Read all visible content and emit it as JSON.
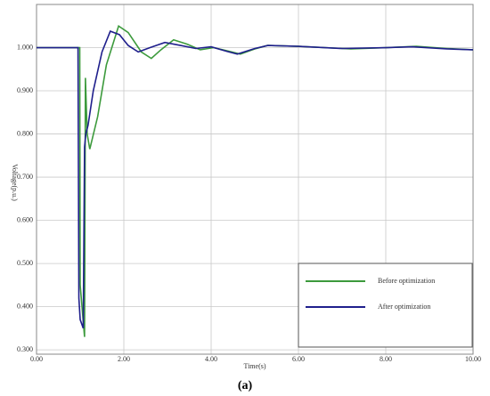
{
  "chart_data": {
    "type": "line",
    "x_label": "Time(s)",
    "y_label": "Voltage(p.u.)",
    "caption": "(a)",
    "xlim": [
      0,
      10
    ],
    "ylim": [
      0.29,
      1.1
    ],
    "xticks": [
      {
        "value": 0,
        "label": "0.00"
      },
      {
        "value": 2,
        "label": "2.00"
      },
      {
        "value": 4,
        "label": "4.00"
      },
      {
        "value": 6,
        "label": "6.00"
      },
      {
        "value": 8,
        "label": "8.00"
      },
      {
        "value": 10,
        "label": "10.00"
      }
    ],
    "yticks": [
      {
        "value": 0.3,
        "label": "0.300"
      },
      {
        "value": 0.4,
        "label": "0.400"
      },
      {
        "value": 0.5,
        "label": "0.500"
      },
      {
        "value": 0.6,
        "label": "0.600"
      },
      {
        "value": 0.7,
        "label": "0.700"
      },
      {
        "value": 0.8,
        "label": "0.800"
      },
      {
        "value": 0.9,
        "label": "0.900"
      },
      {
        "value": 1.0,
        "label": "1.000"
      }
    ],
    "grid": true,
    "legend": "lower right",
    "series": [
      {
        "name": "Before optimization",
        "color": "#3c9a3c",
        "x": [
          0,
          0.99,
          1.0,
          1.1,
          1.12,
          1.16,
          1.22,
          1.4,
          1.6,
          1.88,
          2.1,
          2.4,
          2.63,
          2.85,
          3.14,
          3.45,
          3.75,
          4.06,
          4.35,
          4.67,
          5.0,
          5.29,
          6.0,
          7.2,
          8.0,
          8.7,
          9.4,
          10
        ],
        "values": [
          1.0,
          1.0,
          0.45,
          0.33,
          0.93,
          0.8,
          0.765,
          0.84,
          0.96,
          1.05,
          1.035,
          0.99,
          0.975,
          0.995,
          1.018,
          1.008,
          0.995,
          1.0,
          0.993,
          0.985,
          0.997,
          1.005,
          1.003,
          0.997,
          1.0,
          1.003,
          0.998,
          0.995
        ]
      },
      {
        "name": "After optimization",
        "color": "#1f1f8c",
        "x": [
          0,
          0.95,
          0.97,
          1.0,
          1.07,
          1.1,
          1.13,
          1.18,
          1.3,
          1.5,
          1.69,
          1.9,
          2.1,
          2.33,
          2.6,
          2.94,
          3.3,
          3.65,
          4.0,
          4.3,
          4.6,
          5.0,
          5.3,
          6.0,
          7.0,
          8.0,
          8.6,
          9.4,
          10
        ],
        "values": [
          1.0,
          1.0,
          0.42,
          0.37,
          0.35,
          0.77,
          0.8,
          0.82,
          0.9,
          0.99,
          1.038,
          1.03,
          1.005,
          0.99,
          1.0,
          1.012,
          1.005,
          0.998,
          1.002,
          0.993,
          0.985,
          0.998,
          1.005,
          1.003,
          0.998,
          1.0,
          1.002,
          0.997,
          0.995
        ]
      }
    ]
  }
}
